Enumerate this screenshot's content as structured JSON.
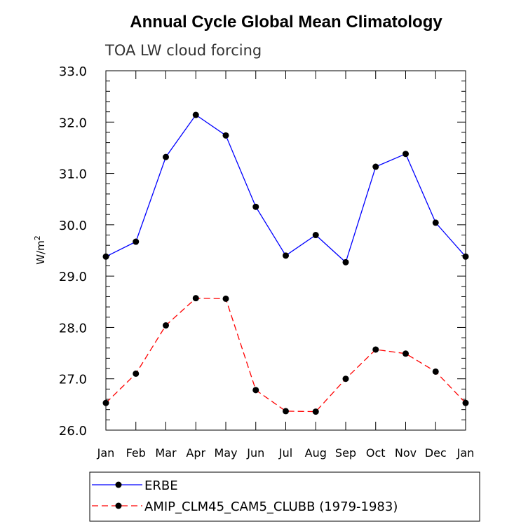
{
  "chart_data": {
    "type": "line",
    "title": "Annual Cycle Global Mean Climatology",
    "subtitle": "TOA LW cloud forcing",
    "ylabel": "W/m",
    "ylabel_superscript": "2",
    "xlabel": "",
    "categories": [
      "Jan",
      "Feb",
      "Mar",
      "Apr",
      "May",
      "Jun",
      "Jul",
      "Aug",
      "Sep",
      "Oct",
      "Nov",
      "Dec",
      "Jan"
    ],
    "ylim": [
      26.0,
      33.0
    ],
    "yticks": [
      "26.0",
      "27.0",
      "28.0",
      "29.0",
      "30.0",
      "31.0",
      "32.0",
      "33.0"
    ],
    "grid": false,
    "legend_position": "bottom",
    "series": [
      {
        "name": "ERBE",
        "color": "#0000ff",
        "style": "solid",
        "values": [
          29.38,
          29.67,
          31.32,
          32.14,
          31.74,
          30.35,
          29.4,
          29.8,
          29.27,
          31.13,
          31.38,
          30.04,
          29.38
        ]
      },
      {
        "name": "AMIP_CLM45_CAM5_CLUBB (1979-1983)",
        "color": "#ff0000",
        "style": "dashed",
        "values": [
          26.53,
          27.1,
          28.04,
          28.57,
          28.56,
          26.78,
          26.37,
          26.36,
          27.0,
          27.57,
          27.49,
          27.14,
          26.53
        ]
      }
    ]
  }
}
